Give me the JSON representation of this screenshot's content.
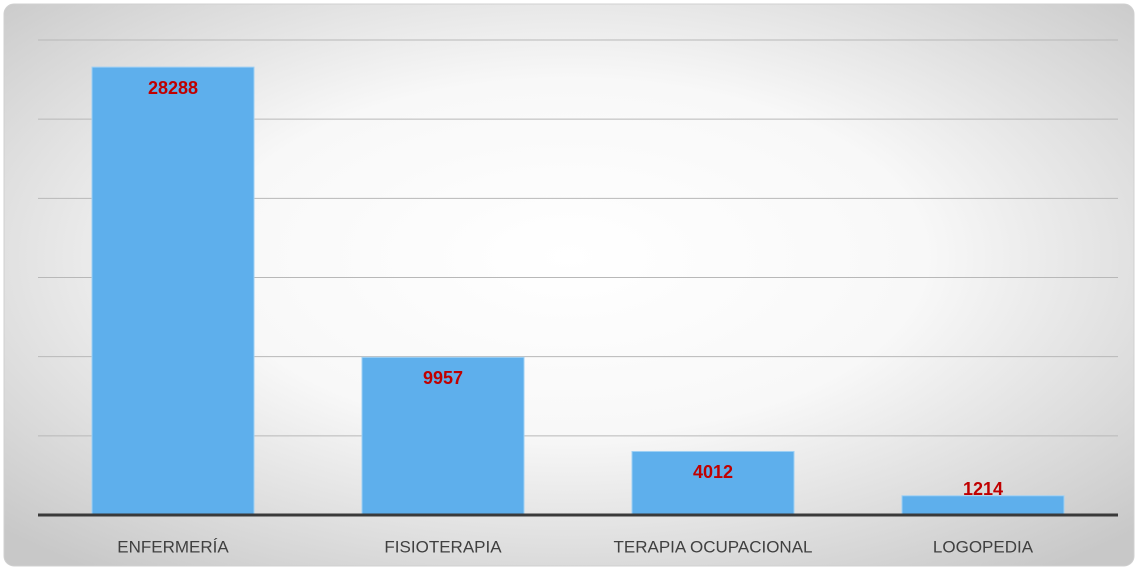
{
  "chart_data": {
    "type": "bar",
    "categories": [
      "ENFERMERÍA",
      "FISIOTERAPIA",
      "TERAPIA OCUPACIONAL",
      "LOGOPEDIA"
    ],
    "values": [
      28288,
      9957,
      4012,
      1214
    ],
    "color": "#5eafec",
    "label_color": "#c00000",
    "ylim": [
      0,
      30000
    ],
    "yticks": [
      0,
      5000,
      10000,
      15000,
      20000,
      25000,
      30000
    ],
    "grid": true
  }
}
